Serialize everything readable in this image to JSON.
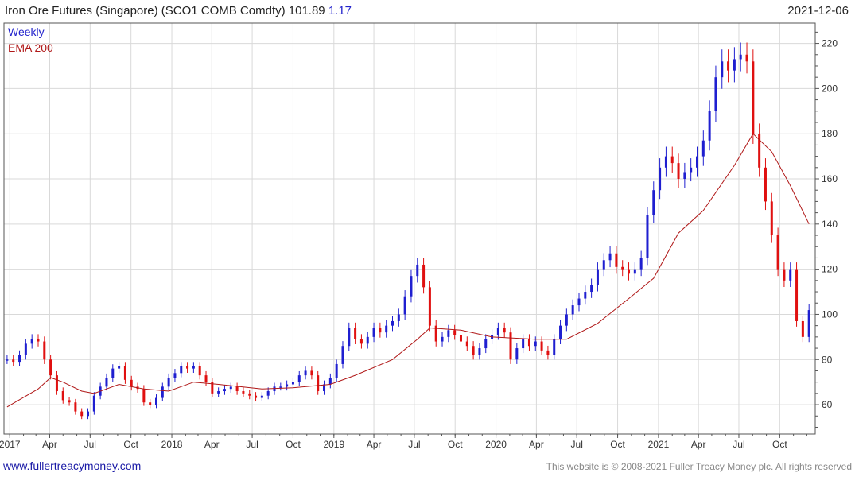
{
  "header": {
    "title": "Iron Ore Futures (Singapore) (SCO1 COMB Comdty) 101.89",
    "change": "1.17",
    "date": "2021-12-06"
  },
  "footer": {
    "site": "www.fullertreacymoney.com",
    "copyright": "This website is © 2008-2021 Fuller Treacy Money plc. All rights reserved"
  },
  "colors": {
    "up": "#1f1fd0",
    "down": "#e01010",
    "ema": "#b01818",
    "grid": "#d9d9d9",
    "axis": "#555555"
  },
  "chart_data": {
    "type": "line",
    "legend": [
      {
        "label": "Weekly",
        "color": "#2222cc"
      },
      {
        "label": "EMA 200",
        "color": "#b01818"
      }
    ],
    "y_ticks": [
      60,
      80,
      100,
      120,
      140,
      160,
      180,
      200,
      220
    ],
    "ylim": [
      47,
      229
    ],
    "xlim": [
      "2016-12-19",
      "2021-12-20"
    ],
    "x_ticks": [
      {
        "date": "2017-01-01",
        "label": "2017"
      },
      {
        "date": "2017-04-01",
        "label": "Apr"
      },
      {
        "date": "2017-07-01",
        "label": "Jul"
      },
      {
        "date": "2017-10-01",
        "label": "Oct"
      },
      {
        "date": "2018-01-01",
        "label": "2018"
      },
      {
        "date": "2018-04-01",
        "label": "Apr"
      },
      {
        "date": "2018-07-01",
        "label": "Jul"
      },
      {
        "date": "2018-10-01",
        "label": "Oct"
      },
      {
        "date": "2019-01-01",
        "label": "2019"
      },
      {
        "date": "2019-04-01",
        "label": "Apr"
      },
      {
        "date": "2019-07-01",
        "label": "Jul"
      },
      {
        "date": "2019-10-01",
        "label": "Oct"
      },
      {
        "date": "2020-01-01",
        "label": "2020"
      },
      {
        "date": "2020-04-01",
        "label": "Apr"
      },
      {
        "date": "2020-07-01",
        "label": "Jul"
      },
      {
        "date": "2020-10-01",
        "label": "Oct"
      },
      {
        "date": "2021-01-01",
        "label": "2021"
      },
      {
        "date": "2021-04-01",
        "label": "Apr"
      },
      {
        "date": "2021-07-01",
        "label": "Jul"
      },
      {
        "date": "2021-10-01",
        "label": "Oct"
      }
    ],
    "weekly_close": [
      [
        "2016-12-26",
        80
      ],
      [
        "2017-01-09",
        79
      ],
      [
        "2017-01-23",
        82
      ],
      [
        "2017-02-06",
        87
      ],
      [
        "2017-02-20",
        89
      ],
      [
        "2017-03-06",
        88
      ],
      [
        "2017-03-20",
        80
      ],
      [
        "2017-04-03",
        73
      ],
      [
        "2017-04-17",
        66
      ],
      [
        "2017-05-01",
        62
      ],
      [
        "2017-05-15",
        61
      ],
      [
        "2017-05-29",
        57
      ],
      [
        "2017-06-12",
        55
      ],
      [
        "2017-06-26",
        57
      ],
      [
        "2017-07-10",
        64
      ],
      [
        "2017-07-24",
        68
      ],
      [
        "2017-08-07",
        72
      ],
      [
        "2017-08-21",
        76
      ],
      [
        "2017-09-04",
        77
      ],
      [
        "2017-09-18",
        71
      ],
      [
        "2017-10-02",
        68
      ],
      [
        "2017-10-16",
        67
      ],
      [
        "2017-10-30",
        61
      ],
      [
        "2017-11-13",
        60
      ],
      [
        "2017-11-27",
        63
      ],
      [
        "2017-12-11",
        68
      ],
      [
        "2017-12-25",
        72
      ],
      [
        "2018-01-08",
        74
      ],
      [
        "2018-01-22",
        77
      ],
      [
        "2018-02-05",
        76
      ],
      [
        "2018-02-19",
        77
      ],
      [
        "2018-03-05",
        73
      ],
      [
        "2018-03-19",
        70
      ],
      [
        "2018-04-02",
        65
      ],
      [
        "2018-04-16",
        66
      ],
      [
        "2018-04-30",
        67
      ],
      [
        "2018-05-14",
        68
      ],
      [
        "2018-05-28",
        66
      ],
      [
        "2018-06-11",
        65
      ],
      [
        "2018-06-25",
        64
      ],
      [
        "2018-07-09",
        63
      ],
      [
        "2018-07-23",
        64
      ],
      [
        "2018-08-06",
        66
      ],
      [
        "2018-08-20",
        68
      ],
      [
        "2018-09-03",
        68
      ],
      [
        "2018-09-17",
        69
      ],
      [
        "2018-10-01",
        70
      ],
      [
        "2018-10-15",
        73
      ],
      [
        "2018-10-29",
        75
      ],
      [
        "2018-11-12",
        73
      ],
      [
        "2018-11-26",
        66
      ],
      [
        "2018-12-10",
        69
      ],
      [
        "2018-12-24",
        72
      ],
      [
        "2019-01-07",
        78
      ],
      [
        "2019-01-21",
        86
      ],
      [
        "2019-02-04",
        94
      ],
      [
        "2019-02-18",
        89
      ],
      [
        "2019-03-04",
        87
      ],
      [
        "2019-03-18",
        90
      ],
      [
        "2019-04-01",
        94
      ],
      [
        "2019-04-15",
        92
      ],
      [
        "2019-04-29",
        95
      ],
      [
        "2019-05-13",
        97
      ],
      [
        "2019-05-27",
        100
      ],
      [
        "2019-06-10",
        108
      ],
      [
        "2019-06-24",
        117
      ],
      [
        "2019-07-08",
        122
      ],
      [
        "2019-07-22",
        112
      ],
      [
        "2019-08-05",
        95
      ],
      [
        "2019-08-19",
        88
      ],
      [
        "2019-09-02",
        90
      ],
      [
        "2019-09-16",
        93
      ],
      [
        "2019-09-30",
        91
      ],
      [
        "2019-10-14",
        88
      ],
      [
        "2019-10-28",
        86
      ],
      [
        "2019-11-11",
        82
      ],
      [
        "2019-11-25",
        85
      ],
      [
        "2019-12-09",
        89
      ],
      [
        "2019-12-23",
        91
      ],
      [
        "2020-01-06",
        94
      ],
      [
        "2020-01-20",
        92
      ],
      [
        "2020-02-03",
        80
      ],
      [
        "2020-02-17",
        85
      ],
      [
        "2020-03-02",
        89
      ],
      [
        "2020-03-16",
        86
      ],
      [
        "2020-03-30",
        88
      ],
      [
        "2020-04-13",
        84
      ],
      [
        "2020-04-27",
        82
      ],
      [
        "2020-05-11",
        89
      ],
      [
        "2020-05-25",
        95
      ],
      [
        "2020-06-08",
        100
      ],
      [
        "2020-06-22",
        104
      ],
      [
        "2020-07-06",
        107
      ],
      [
        "2020-07-20",
        110
      ],
      [
        "2020-08-03",
        113
      ],
      [
        "2020-08-17",
        120
      ],
      [
        "2020-08-31",
        124
      ],
      [
        "2020-09-14",
        127
      ],
      [
        "2020-09-28",
        121
      ],
      [
        "2020-10-12",
        120
      ],
      [
        "2020-10-26",
        118
      ],
      [
        "2020-11-09",
        120
      ],
      [
        "2020-11-23",
        125
      ],
      [
        "2020-12-07",
        144
      ],
      [
        "2020-12-21",
        155
      ],
      [
        "2021-01-04",
        165
      ],
      [
        "2021-01-18",
        170
      ],
      [
        "2021-02-01",
        167
      ],
      [
        "2021-02-15",
        160
      ],
      [
        "2021-03-01",
        163
      ],
      [
        "2021-03-15",
        165
      ],
      [
        "2021-03-29",
        170
      ],
      [
        "2021-04-12",
        177
      ],
      [
        "2021-04-26",
        190
      ],
      [
        "2021-05-10",
        205
      ],
      [
        "2021-05-24",
        212
      ],
      [
        "2021-06-07",
        208
      ],
      [
        "2021-06-21",
        213
      ],
      [
        "2021-07-05",
        215
      ],
      [
        "2021-07-19",
        212
      ],
      [
        "2021-08-02",
        180
      ],
      [
        "2021-08-16",
        165
      ],
      [
        "2021-08-30",
        150
      ],
      [
        "2021-09-13",
        135
      ],
      [
        "2021-09-27",
        120
      ],
      [
        "2021-10-11",
        115
      ],
      [
        "2021-10-25",
        120
      ],
      [
        "2021-11-08",
        97
      ],
      [
        "2021-11-22",
        90
      ],
      [
        "2021-12-06",
        101.89
      ]
    ],
    "ema200": [
      [
        "2016-12-26",
        59
      ],
      [
        "2017-03-06",
        67
      ],
      [
        "2017-04-03",
        72
      ],
      [
        "2017-05-01",
        70
      ],
      [
        "2017-06-12",
        66
      ],
      [
        "2017-07-10",
        65
      ],
      [
        "2017-09-04",
        69
      ],
      [
        "2017-10-30",
        67
      ],
      [
        "2017-12-25",
        66
      ],
      [
        "2018-02-19",
        70
      ],
      [
        "2018-04-16",
        69
      ],
      [
        "2018-07-23",
        67
      ],
      [
        "2018-10-01",
        67.5
      ],
      [
        "2018-12-24",
        69
      ],
      [
        "2019-02-18",
        73
      ],
      [
        "2019-05-13",
        80
      ],
      [
        "2019-07-08",
        89
      ],
      [
        "2019-08-05",
        94
      ],
      [
        "2019-10-14",
        93
      ],
      [
        "2019-12-23",
        90
      ],
      [
        "2020-03-30",
        89
      ],
      [
        "2020-06-08",
        89
      ],
      [
        "2020-08-17",
        96
      ],
      [
        "2020-10-26",
        107
      ],
      [
        "2020-12-21",
        116
      ],
      [
        "2021-02-15",
        136
      ],
      [
        "2021-04-12",
        146
      ],
      [
        "2021-06-21",
        166
      ],
      [
        "2021-08-02",
        180
      ],
      [
        "2021-09-13",
        172
      ],
      [
        "2021-10-25",
        157
      ],
      [
        "2021-12-06",
        140
      ]
    ]
  }
}
